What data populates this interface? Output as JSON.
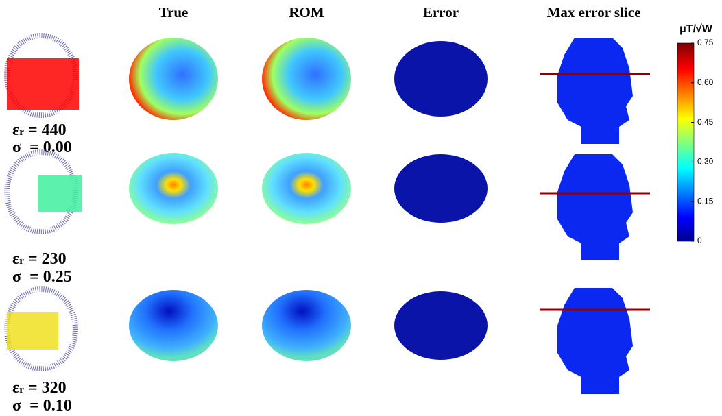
{
  "headers": [
    "True",
    "ROM",
    "Error",
    "Max error slice"
  ],
  "rows": [
    {
      "eps_symbol": "ε",
      "eps_sub": "r",
      "eps_text": "= 440",
      "sigma_symbol": "σ",
      "sigma_text": "= 0.00"
    },
    {
      "eps_symbol": "ε",
      "eps_sub": "r",
      "eps_text": "= 230",
      "sigma_symbol": "σ",
      "sigma_text": "= 0.25"
    },
    {
      "eps_symbol": "ε",
      "eps_sub": "r",
      "eps_text": "= 320",
      "sigma_symbol": "σ",
      "sigma_text": "= 0.10"
    }
  ],
  "colorbar": {
    "unit": "μT/√W",
    "range": [
      0,
      0.75
    ],
    "ticks": [
      {
        "value": 0,
        "label": "0"
      },
      {
        "value": 0.15,
        "label": "0.15"
      },
      {
        "value": 0.3,
        "label": "0.30"
      },
      {
        "value": 0.45,
        "label": "0.45"
      },
      {
        "value": 0.6,
        "label": "0.60"
      },
      {
        "value": 0.75,
        "label": "0.75"
      }
    ]
  }
}
